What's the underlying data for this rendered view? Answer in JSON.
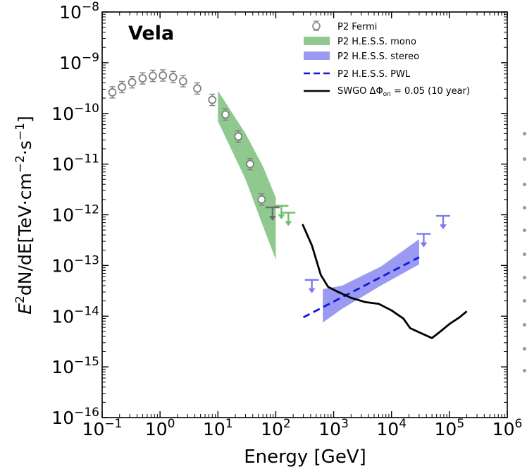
{
  "chart_data": {
    "type": "scatter",
    "title": "Vela",
    "xlabel": "Energy [GeV]",
    "ylabel_parts": {
      "pre": "E",
      "pre_sup": "2",
      "mid": "dN/dE[TeV·cm",
      "mid_sup": "−2",
      "mid2": "·s",
      "mid2_sup": "−1",
      "post": "]"
    },
    "xscale": "log",
    "yscale": "log",
    "xlim": [
      0.1,
      1000000
    ],
    "ylim": [
      1e-16,
      1e-08
    ],
    "xticks": [
      {
        "value": 0.1,
        "base": "10",
        "exp": "−1"
      },
      {
        "value": 1,
        "base": "10",
        "exp": "0"
      },
      {
        "value": 10,
        "base": "10",
        "exp": "1"
      },
      {
        "value": 100,
        "base": "10",
        "exp": "2"
      },
      {
        "value": 1000,
        "base": "10",
        "exp": "3"
      },
      {
        "value": 10000,
        "base": "10",
        "exp": "4"
      },
      {
        "value": 100000,
        "base": "10",
        "exp": "5"
      },
      {
        "value": 1000000,
        "base": "10",
        "exp": "6"
      }
    ],
    "yticks": [
      {
        "value": 1e-16,
        "base": "10",
        "exp": "−16"
      },
      {
        "value": 1e-15,
        "base": "10",
        "exp": "−15"
      },
      {
        "value": 1e-14,
        "base": "10",
        "exp": "−14"
      },
      {
        "value": 1e-13,
        "base": "10",
        "exp": "−13"
      },
      {
        "value": 1e-12,
        "base": "10",
        "exp": "−12"
      },
      {
        "value": 1e-11,
        "base": "10",
        "exp": "−11"
      },
      {
        "value": 1e-10,
        "base": "10",
        "exp": "−10"
      },
      {
        "value": 1e-09,
        "base": "10",
        "exp": "−9"
      },
      {
        "value": 1e-08,
        "base": "10",
        "exp": "−8"
      }
    ],
    "legend_position": "top-right",
    "series": [
      {
        "name": "P2 Fermi",
        "kind": "points",
        "color": "#808080",
        "points": [
          {
            "x": 0.15,
            "y": 2.6e-10
          },
          {
            "x": 0.22,
            "y": 3.3e-10
          },
          {
            "x": 0.33,
            "y": 4.1e-10
          },
          {
            "x": 0.5,
            "y": 4.9e-10
          },
          {
            "x": 0.75,
            "y": 5.5e-10
          },
          {
            "x": 1.12,
            "y": 5.6e-10
          },
          {
            "x": 1.68,
            "y": 5.2e-10
          },
          {
            "x": 2.5,
            "y": 4.3e-10
          },
          {
            "x": 4.4,
            "y": 3.1e-10
          },
          {
            "x": 8.0,
            "y": 1.85e-10
          },
          {
            "x": 13.5,
            "y": 9.5e-11
          },
          {
            "x": 22.5,
            "y": 3.5e-11
          },
          {
            "x": 36,
            "y": 1e-11
          },
          {
            "x": 57,
            "y": 2e-12
          }
        ],
        "upper_limits": [
          {
            "x": 88,
            "y": 1.4e-12
          }
        ]
      },
      {
        "name": "P2 H.E.S.S. mono",
        "kind": "band",
        "color": "#8fc98f",
        "band": [
          {
            "x": 10,
            "low": 7e-11,
            "high": 2.8e-10
          },
          {
            "x": 30,
            "low": 5e-12,
            "high": 4e-11
          },
          {
            "x": 60,
            "low": 6e-13,
            "high": 9e-12
          },
          {
            "x": 100,
            "low": 1.3e-13,
            "high": 2.2e-12
          }
        ],
        "upper_limits": [
          {
            "x": 125,
            "y": 1.5e-12
          },
          {
            "x": 165,
            "y": 1.1e-12
          }
        ]
      },
      {
        "name": "P2 H.E.S.S. stereo",
        "kind": "band",
        "color": "#9a9af2",
        "band": [
          {
            "x": 650,
            "low": 7.5e-15,
            "high": 3.4e-14
          },
          {
            "x": 1400,
            "low": 1.4e-14,
            "high": 4e-14
          },
          {
            "x": 6500,
            "low": 4e-14,
            "high": 9.5e-14
          },
          {
            "x": 30000,
            "low": 1.05e-13,
            "high": 3.3e-13
          }
        ],
        "upper_limits": [
          {
            "x": 420,
            "y": 5.2e-14
          },
          {
            "x": 36000,
            "y": 4.2e-13
          },
          {
            "x": 78000,
            "y": 9.5e-13
          }
        ]
      },
      {
        "name": "P2 H.E.S.S. PWL",
        "kind": "dashed-line",
        "color": "#1515e0",
        "points": [
          {
            "x": 300,
            "y": 9.5e-15
          },
          {
            "x": 30000,
            "y": 1.45e-13
          }
        ]
      },
      {
        "name": "SWGO ΔΦ",
        "legend_sub": "on",
        "legend_suffix": " = 0.05 (10 year)",
        "kind": "line",
        "color": "#000000",
        "points": [
          {
            "x": 290,
            "y": 6.5e-13
          },
          {
            "x": 420,
            "y": 2.5e-13
          },
          {
            "x": 600,
            "y": 6.5e-14
          },
          {
            "x": 800,
            "y": 3.8e-14
          },
          {
            "x": 1200,
            "y": 3e-14
          },
          {
            "x": 2000,
            "y": 2.3e-14
          },
          {
            "x": 3500,
            "y": 1.9e-14
          },
          {
            "x": 6000,
            "y": 1.75e-14
          },
          {
            "x": 10000,
            "y": 1.3e-14
          },
          {
            "x": 16000,
            "y": 9e-15
          },
          {
            "x": 21000,
            "y": 5.8e-15
          },
          {
            "x": 30000,
            "y": 4.8e-15
          },
          {
            "x": 50000,
            "y": 3.7e-15
          },
          {
            "x": 70000,
            "y": 5e-15
          },
          {
            "x": 100000,
            "y": 7e-15
          },
          {
            "x": 150000,
            "y": 9.5e-15
          },
          {
            "x": 200000,
            "y": 1.25e-14
          }
        ]
      }
    ]
  }
}
